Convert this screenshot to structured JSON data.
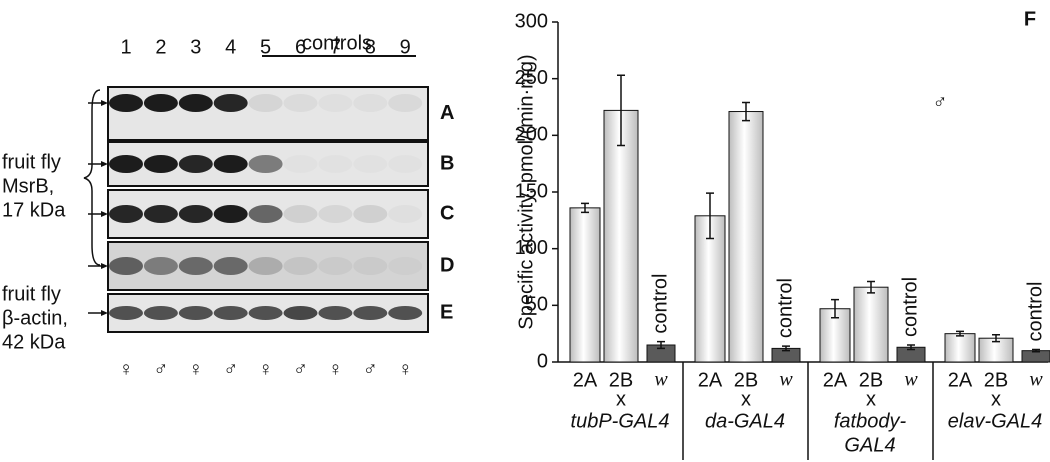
{
  "blot": {
    "lane_numbers": [
      "1",
      "2",
      "3",
      "4",
      "5",
      "6",
      "7",
      "8",
      "9"
    ],
    "controls_label": "controls",
    "row_letters": [
      "A",
      "B",
      "C",
      "D",
      "E"
    ],
    "msrb_label_lines": [
      "fruit fly",
      "MsrB,",
      "17 kDa"
    ],
    "actin_label_lines": [
      "fruit fly",
      "β-actin,",
      "42 kDa"
    ],
    "sexes": [
      "♀",
      "♂",
      "♀",
      "♂",
      "♀",
      "♂",
      "♀",
      "♂",
      "♀"
    ]
  },
  "chart_data": {
    "type": "bar",
    "title": "F",
    "y_label": "Specific activity, pmol/(min·mg)",
    "ylim": [
      0,
      300
    ],
    "yticks": [
      0,
      50,
      100,
      150,
      200,
      250,
      300
    ],
    "symbol": "♂",
    "cross_label": "x",
    "control_label": "control",
    "bar_colors": [
      "#bdbdbd",
      "#bdbdbd",
      "#5a5a5a"
    ],
    "groups": [
      {
        "label_lines": [
          "tubP-GAL4"
        ],
        "categories": [
          "2A",
          "2B",
          "w"
        ],
        "values": [
          136,
          222,
          15
        ],
        "errors": [
          4,
          31,
          3
        ]
      },
      {
        "label_lines": [
          "da-GAL4"
        ],
        "categories": [
          "2A",
          "2B",
          "w"
        ],
        "values": [
          129,
          221,
          12
        ],
        "errors": [
          20,
          8,
          2
        ]
      },
      {
        "label_lines": [
          "fatbody-",
          "GAL4"
        ],
        "categories": [
          "2A",
          "2B",
          "w"
        ],
        "values": [
          47,
          66,
          13
        ],
        "errors": [
          8,
          5,
          2
        ]
      },
      {
        "label_lines": [
          "elav-GAL4"
        ],
        "categories": [
          "2A",
          "2B",
          "w"
        ],
        "values": [
          25,
          21,
          10
        ],
        "errors": [
          2,
          3,
          1
        ]
      }
    ]
  }
}
